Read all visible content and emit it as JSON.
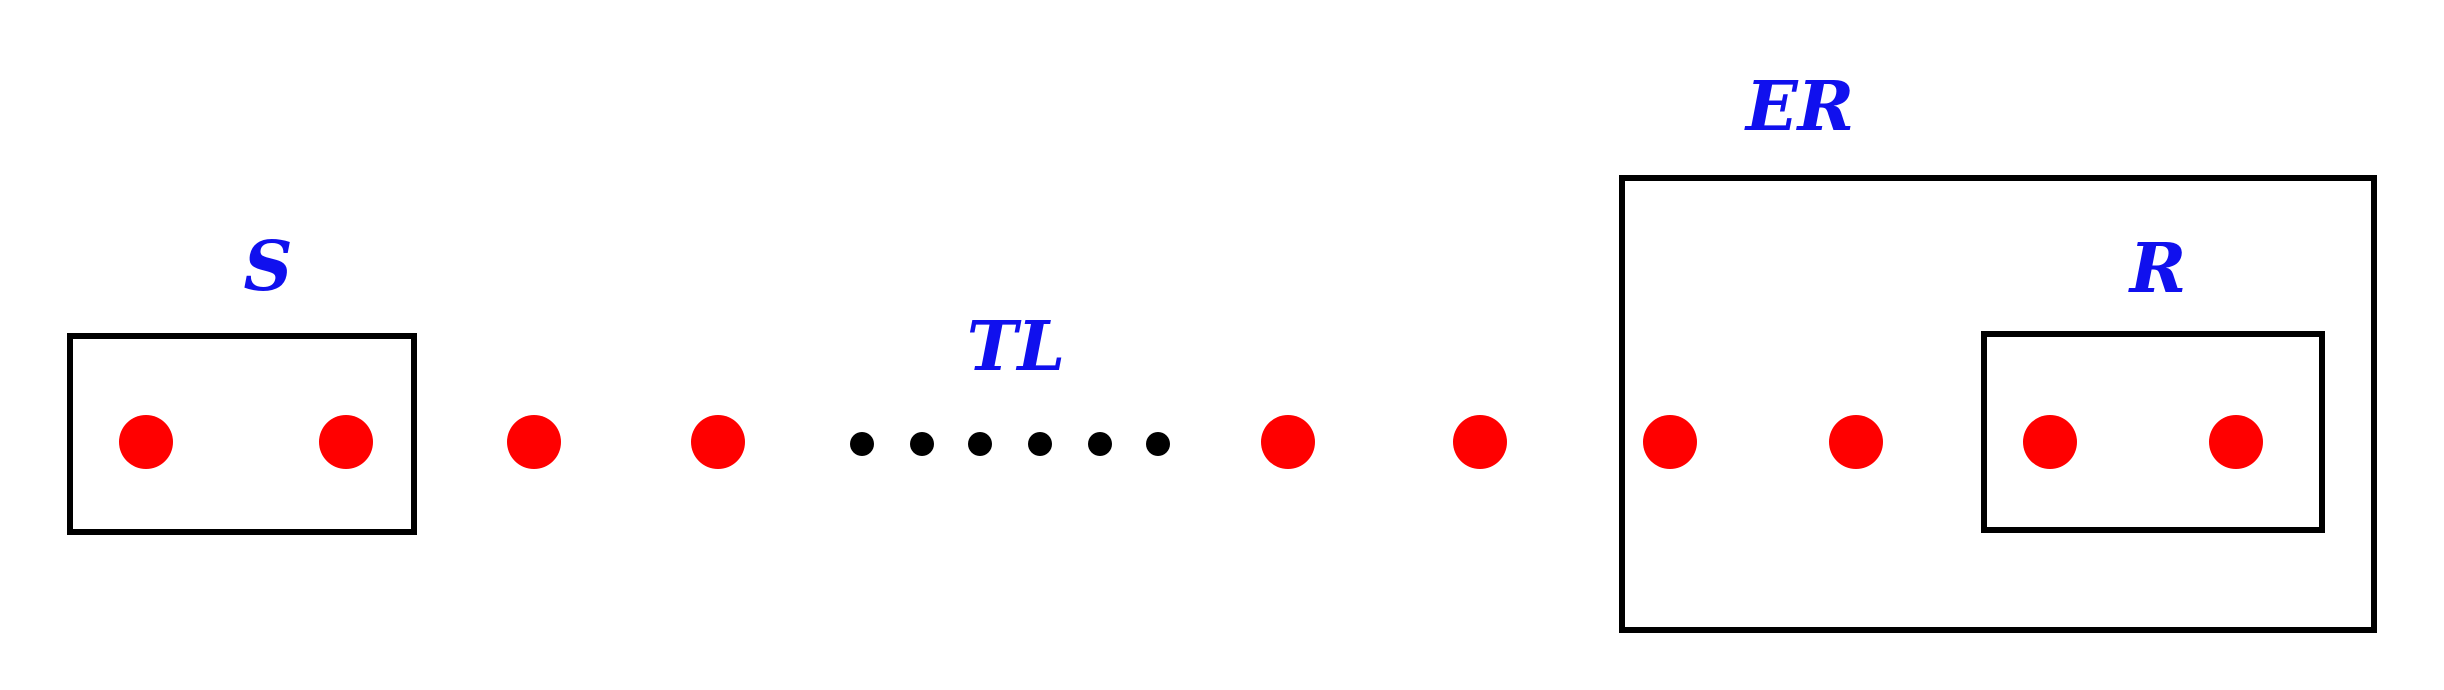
{
  "labels": {
    "S": "S",
    "TL": "TL",
    "ER": "ER",
    "R": "R"
  },
  "colors": {
    "label": "#1010ee",
    "node": "#ff0000",
    "ellipsis_dot": "#000000",
    "box_stroke": "#000000"
  }
}
